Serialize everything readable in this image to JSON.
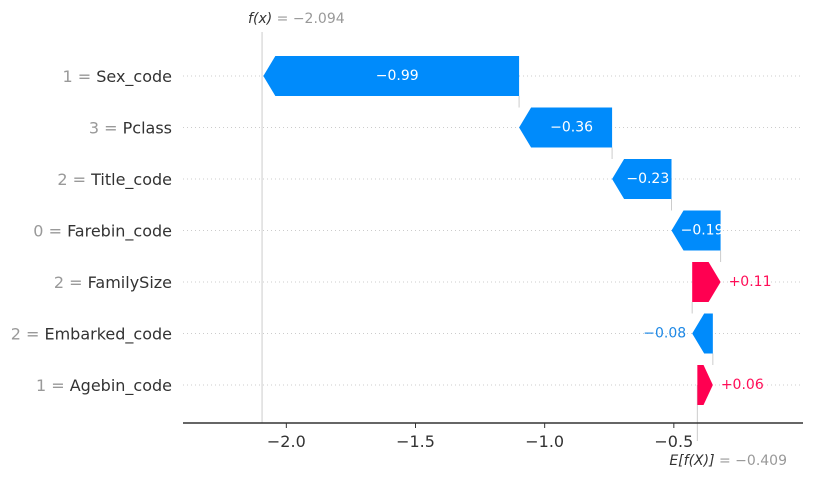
{
  "chart_data": {
    "type": "bar",
    "subtype": "shap-waterfall",
    "base_value": -0.409,
    "final_value": -2.094,
    "fx_label": {
      "fn": "f(x)",
      "eq": " = −2.094"
    },
    "ex_label": {
      "fn": "E[f(X)]",
      "eq": " = −0.409"
    },
    "features": [
      {
        "value": "1",
        "name": "Sex_code",
        "shap": -0.99,
        "label": "−0.99"
      },
      {
        "value": "3",
        "name": "Pclass",
        "shap": -0.36,
        "label": "−0.36"
      },
      {
        "value": "2",
        "name": "Title_code",
        "shap": -0.23,
        "label": "−0.23"
      },
      {
        "value": "0",
        "name": "Farebin_code",
        "shap": -0.19,
        "label": "−0.19"
      },
      {
        "value": "2",
        "name": "FamilySize",
        "shap": 0.11,
        "label": "+0.11"
      },
      {
        "value": "2",
        "name": "Embarked_code",
        "shap": -0.08,
        "label": "−0.08"
      },
      {
        "value": "1",
        "name": "Agebin_code",
        "shap": 0.06,
        "label": "+0.06"
      }
    ],
    "xticks": [
      -2.0,
      -1.5,
      -1.0,
      -0.5
    ],
    "xtick_labels": [
      "−2.0",
      "−1.5",
      "−1.0",
      "−0.5"
    ],
    "xlim": [
      -2.4,
      -0.0
    ],
    "colors": {
      "negative": "#008bfb",
      "positive": "#ff0051",
      "negative_text": "#1e88e5",
      "positive_text": "#ff0d57",
      "axis": "#333333",
      "gridline": "#cccccc",
      "muted": "#999999"
    }
  }
}
